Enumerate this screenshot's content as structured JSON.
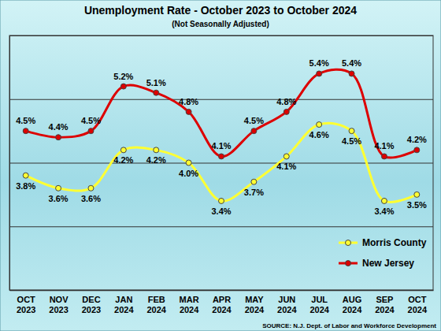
{
  "chart_data": {
    "type": "line",
    "title": "Unemployment Rate - October 2023 to October 2024",
    "subtitle": "(Not Seasonally Adjusted)",
    "source": "SOURCE:  N.J. Dept. of Labor and Workforce Development",
    "categories": [
      "OCT 2023",
      "NOV 2023",
      "DEC 2023",
      "JAN 2024",
      "FEB 2024",
      "MAR 2024",
      "APR 2024",
      "MAY 2024",
      "JUN 2024",
      "JUL 2024",
      "AUG 2024",
      "SEP 2024",
      "OCT 2024"
    ],
    "series": [
      {
        "name": "Morris County",
        "color": "#ffff33",
        "marker": "circle",
        "line_style": "solid",
        "values": [
          3.8,
          3.6,
          3.6,
          4.2,
          4.2,
          4.0,
          3.4,
          3.7,
          4.1,
          4.6,
          4.5,
          3.4,
          3.5
        ],
        "value_labels": [
          "3.8%",
          "3.6%",
          "3.6%",
          "4.2%",
          "4.2%",
          "4.0%",
          "3.4%",
          "3.7%",
          "4.1%",
          "4.6%",
          "4.5%",
          "3.4%",
          "3.5%"
        ]
      },
      {
        "name": "New Jersey",
        "color": "#dd0000",
        "marker": "circle",
        "line_style": "solid",
        "values": [
          4.5,
          4.4,
          4.5,
          5.2,
          5.1,
          4.8,
          4.1,
          4.5,
          4.8,
          5.4,
          5.4,
          4.1,
          4.2
        ],
        "value_labels": [
          "4.5%",
          "4.4%",
          "4.5%",
          "5.2%",
          "5.1%",
          "4.8%",
          "4.1%",
          "4.5%",
          "4.8%",
          "5.4%",
          "5.4%",
          "4.1%",
          "4.2%"
        ]
      }
    ],
    "ylim": [
      2,
      6
    ],
    "yticks": [
      2,
      3,
      4,
      5,
      6
    ],
    "grid": true,
    "tick_labels": "x",
    "data_labels": true,
    "legend": "lower right"
  }
}
